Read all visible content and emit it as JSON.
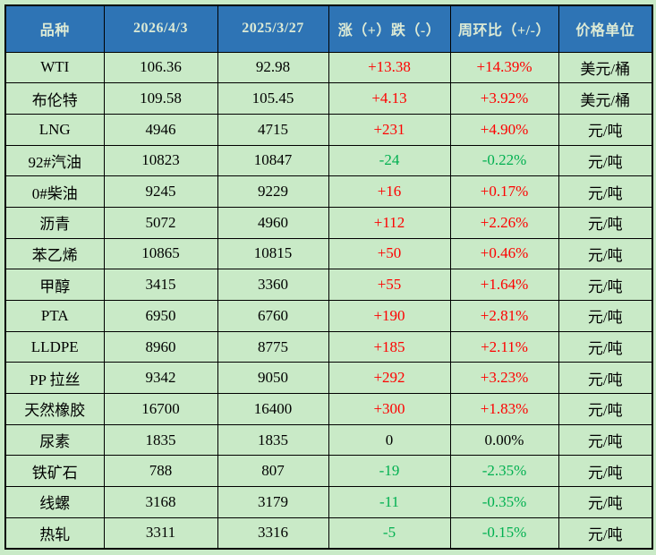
{
  "colors": {
    "header_bg": "#2E74B5",
    "header_text": "#DCEAD5",
    "body_bg": "#C9EAC7",
    "positive_text": "#FE0000",
    "negative_text": "#00B050",
    "border": "#000000"
  },
  "chart_data": {
    "type": "table",
    "title": "",
    "columns": [
      "品种",
      "2026/4/3",
      "2025/3/27",
      "涨（+）跌（-）",
      "周环比（+/-）",
      "价格单位"
    ],
    "rows": [
      {
        "name": "WTI",
        "current": "106.36",
        "previous": "92.98",
        "change": "+13.38",
        "wow": "+14.39%",
        "unit": "美元/桶",
        "trend": "up"
      },
      {
        "name": "布伦特",
        "current": "109.58",
        "previous": "105.45",
        "change": "+4.13",
        "wow": "+3.92%",
        "unit": "美元/桶",
        "trend": "up"
      },
      {
        "name": "LNG",
        "current": "4946",
        "previous": "4715",
        "change": "+231",
        "wow": "+4.90%",
        "unit": "元/吨",
        "trend": "up"
      },
      {
        "name": "92#汽油",
        "current": "10823",
        "previous": "10847",
        "change": "-24",
        "wow": "-0.22%",
        "unit": "元/吨",
        "trend": "down"
      },
      {
        "name": "0#柴油",
        "current": "9245",
        "previous": "9229",
        "change": "+16",
        "wow": "+0.17%",
        "unit": "元/吨",
        "trend": "up"
      },
      {
        "name": "沥青",
        "current": "5072",
        "previous": "4960",
        "change": "+112",
        "wow": "+2.26%",
        "unit": "元/吨",
        "trend": "up"
      },
      {
        "name": "苯乙烯",
        "current": "10865",
        "previous": "10815",
        "change": "+50",
        "wow": "+0.46%",
        "unit": "元/吨",
        "trend": "up"
      },
      {
        "name": "甲醇",
        "current": "3415",
        "previous": "3360",
        "change": "+55",
        "wow": "+1.64%",
        "unit": "元/吨",
        "trend": "up"
      },
      {
        "name": "PTA",
        "current": "6950",
        "previous": "6760",
        "change": "+190",
        "wow": "+2.81%",
        "unit": "元/吨",
        "trend": "up"
      },
      {
        "name": "LLDPE",
        "current": "8960",
        "previous": "8775",
        "change": "+185",
        "wow": "+2.11%",
        "unit": "元/吨",
        "trend": "up"
      },
      {
        "name": "PP 拉丝",
        "current": "9342",
        "previous": "9050",
        "change": "+292",
        "wow": "+3.23%",
        "unit": "元/吨",
        "trend": "up"
      },
      {
        "name": "天然橡胶",
        "current": "16700",
        "previous": "16400",
        "change": "+300",
        "wow": "+1.83%",
        "unit": "元/吨",
        "trend": "up"
      },
      {
        "name": "尿素",
        "current": "1835",
        "previous": "1835",
        "change": "0",
        "wow": "0.00%",
        "unit": "元/吨",
        "trend": "flat"
      },
      {
        "name": "铁矿石",
        "current": "788",
        "previous": "807",
        "change": "-19",
        "wow": "-2.35%",
        "unit": "元/吨",
        "trend": "down"
      },
      {
        "name": "线螺",
        "current": "3168",
        "previous": "3179",
        "change": "-11",
        "wow": "-0.35%",
        "unit": "元/吨",
        "trend": "down"
      },
      {
        "name": "热轧",
        "current": "3311",
        "previous": "3316",
        "change": "-5",
        "wow": "-0.15%",
        "unit": "元/吨",
        "trend": "down"
      }
    ]
  }
}
